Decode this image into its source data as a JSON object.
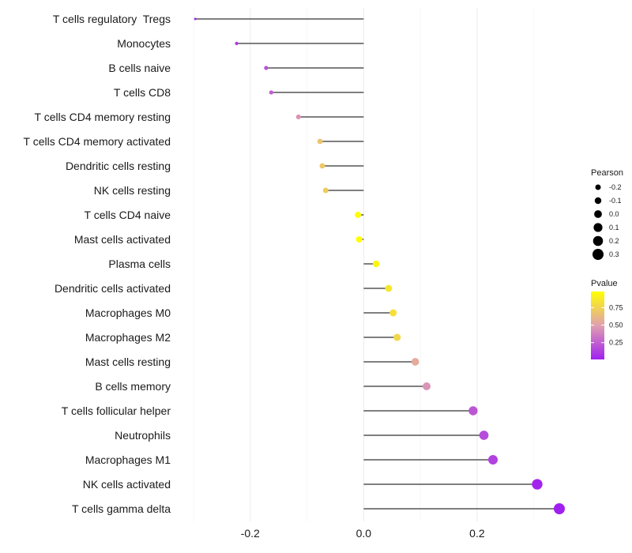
{
  "chart_data": {
    "type": "lollipop",
    "title": "",
    "xlabel": "",
    "ylabel": "",
    "xlim": [
      -0.3,
      0.345
    ],
    "x_ticks": [
      -0.2,
      0.0,
      0.2
    ],
    "x_tick_labels": [
      "-0.2",
      "0.0",
      "0.2"
    ],
    "grid": true,
    "categories": [
      "T cells regulatory  Tregs",
      "Monocytes",
      "B cells naive",
      "T cells CD8",
      "T cells CD4 memory resting",
      "T cells CD4 memory activated",
      "Dendritic cells resting",
      "NK cells resting",
      "T cells CD4 naive",
      "Mast cells activated",
      "Plasma cells",
      "Dendritic cells activated",
      "Macrophages M0",
      "Macrophages M2",
      "Mast cells resting",
      "B cells memory",
      "T cells follicular helper",
      "Neutrophils",
      "Macrophages M1",
      "NK cells activated",
      "T cells gamma delta"
    ],
    "pearson": [
      -0.297,
      -0.224,
      -0.172,
      -0.163,
      -0.115,
      -0.077,
      -0.073,
      -0.067,
      -0.01,
      -0.008,
      0.022,
      0.044,
      0.052,
      0.059,
      0.091,
      0.111,
      0.193,
      0.212,
      0.228,
      0.306,
      0.345
    ],
    "pvalue": [
      0.02,
      0.1,
      0.2,
      0.25,
      0.45,
      0.68,
      0.7,
      0.72,
      0.97,
      0.98,
      0.93,
      0.86,
      0.82,
      0.78,
      0.55,
      0.45,
      0.22,
      0.18,
      0.14,
      0.03,
      0.01
    ],
    "legend_size": {
      "title": "Pearson",
      "labels": [
        "-0.2",
        "-0.1",
        "0.0",
        "0.1",
        "0.2",
        "0.3"
      ]
    },
    "legend_color": {
      "title": "Pvalue",
      "labels": [
        "0.75",
        "0.50",
        "0.25"
      ],
      "values": [
        0.75,
        0.5,
        0.25
      ],
      "range": [
        0.01,
        0.98
      ],
      "low_color": "#a020f0",
      "mid_color": "#e0a0b0",
      "high_color": "#ffff00"
    },
    "legend_position": "right"
  }
}
